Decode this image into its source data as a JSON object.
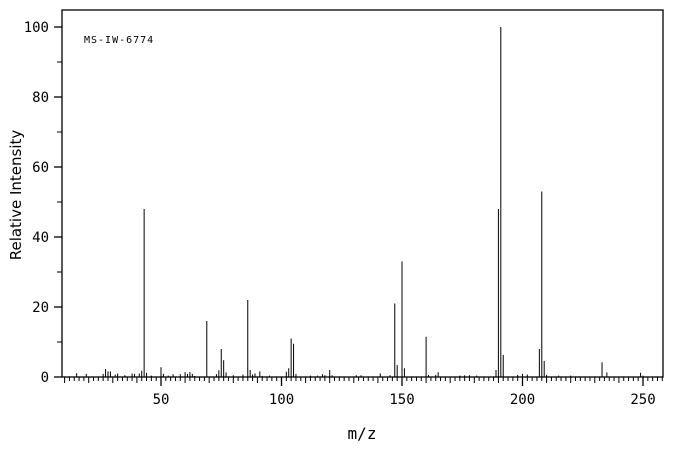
{
  "chart_data": {
    "type": "bar",
    "subtype": "mass-spectrum",
    "annotation": "MS-IW-6774",
    "xlabel": "m/z",
    "ylabel": "Relative Intensity",
    "xlim": [
      10,
      258
    ],
    "ylim": [
      0,
      100
    ],
    "grid": false,
    "x_major_ticks": [
      50,
      100,
      150,
      200,
      250
    ],
    "x_medium_tick_step": 10,
    "x_minor_tick_step": 2,
    "y_major_ticks": [
      0,
      20,
      40,
      60,
      80,
      100
    ],
    "y_minor_tick_step": 10,
    "line_color": "#000000",
    "background_color": "#ffffff",
    "peaks": [
      [
        15,
        1.1
      ],
      [
        19,
        0.9
      ],
      [
        26,
        0.9
      ],
      [
        27,
        2.3
      ],
      [
        28,
        1.6
      ],
      [
        29,
        1.6
      ],
      [
        31,
        0.7
      ],
      [
        32,
        1.0
      ],
      [
        35,
        0.5
      ],
      [
        38,
        1.0
      ],
      [
        39,
        0.9
      ],
      [
        41,
        1.0
      ],
      [
        42,
        1.8
      ],
      [
        43,
        48.0
      ],
      [
        44,
        1.2
      ],
      [
        46,
        0.4
      ],
      [
        50,
        2.8
      ],
      [
        51,
        0.9
      ],
      [
        53,
        0.4
      ],
      [
        55,
        0.8
      ],
      [
        58,
        0.8
      ],
      [
        60,
        1.4
      ],
      [
        61,
        0.9
      ],
      [
        62,
        1.4
      ],
      [
        63,
        0.9
      ],
      [
        64,
        0.3
      ],
      [
        69,
        16.0
      ],
      [
        73,
        0.8
      ],
      [
        74,
        1.9
      ],
      [
        75,
        8.0
      ],
      [
        76,
        4.8
      ],
      [
        77,
        1.3
      ],
      [
        80,
        0.5
      ],
      [
        84,
        0.7
      ],
      [
        86,
        22.0
      ],
      [
        87,
        2.0
      ],
      [
        88,
        0.7
      ],
      [
        89,
        1.0
      ],
      [
        91,
        1.6
      ],
      [
        92,
        0.3
      ],
      [
        95,
        0.4
      ],
      [
        102,
        1.5
      ],
      [
        103,
        2.5
      ],
      [
        104,
        11.0
      ],
      [
        105,
        9.5
      ],
      [
        106,
        0.9
      ],
      [
        112,
        0.4
      ],
      [
        115,
        0.4
      ],
      [
        117,
        0.8
      ],
      [
        118,
        0.5
      ],
      [
        120,
        2.0
      ],
      [
        121,
        0.5
      ],
      [
        131,
        0.5
      ],
      [
        133,
        0.5
      ],
      [
        141,
        1.0
      ],
      [
        145,
        0.5
      ],
      [
        147,
        21.0
      ],
      [
        148,
        3.4
      ],
      [
        150,
        33.0
      ],
      [
        151,
        2.5
      ],
      [
        160,
        11.5
      ],
      [
        161,
        0.6
      ],
      [
        164,
        0.6
      ],
      [
        165,
        1.4
      ],
      [
        174,
        0.4
      ],
      [
        176,
        0.5
      ],
      [
        178,
        0.5
      ],
      [
        181,
        0.4
      ],
      [
        189,
        2.0
      ],
      [
        190,
        48.0
      ],
      [
        191,
        100.0
      ],
      [
        192,
        6.3
      ],
      [
        198,
        0.6
      ],
      [
        200,
        0.9
      ],
      [
        202,
        0.7
      ],
      [
        207,
        8.0
      ],
      [
        208,
        53.0
      ],
      [
        209,
        4.6
      ],
      [
        210,
        0.6
      ],
      [
        215,
        0.4
      ],
      [
        220,
        0.4
      ],
      [
        233,
        4.2
      ],
      [
        235,
        1.3
      ],
      [
        249,
        1.2
      ],
      [
        250,
        0.4
      ]
    ]
  }
}
